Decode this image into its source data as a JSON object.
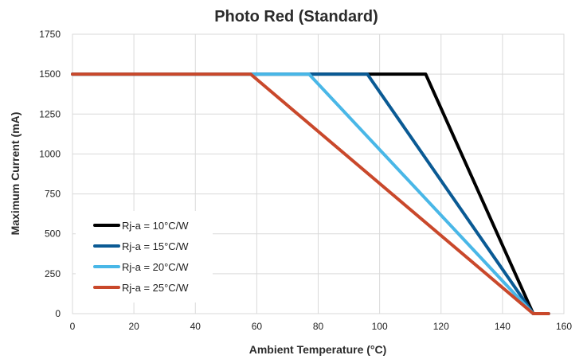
{
  "chart_data": {
    "type": "line",
    "title": "Photo Red (Standard)",
    "xlabel": "Ambient Temperature (°C)",
    "ylabel": "Maximum Current (mA)",
    "xlim": [
      0,
      160
    ],
    "ylim": [
      0,
      1750
    ],
    "xticks": [
      0,
      20,
      40,
      60,
      80,
      100,
      120,
      140,
      160
    ],
    "yticks": [
      0,
      250,
      500,
      750,
      1000,
      1250,
      1500,
      1750
    ],
    "grid": true,
    "legend_position": "bottom-left",
    "series": [
      {
        "name": "Rj-a = 10°C/W",
        "color": "#000000",
        "x": [
          0,
          115,
          150,
          155
        ],
        "y": [
          1500,
          1500,
          0,
          0
        ]
      },
      {
        "name": "Rj-a = 15°C/W",
        "color": "#0a5a94",
        "x": [
          0,
          96,
          150,
          155
        ],
        "y": [
          1500,
          1500,
          0,
          0
        ]
      },
      {
        "name": "Rj-a = 20°C/W",
        "color": "#49b7e7",
        "x": [
          0,
          77,
          150,
          155
        ],
        "y": [
          1500,
          1500,
          0,
          0
        ]
      },
      {
        "name": "Rj-a = 25°C/W",
        "color": "#c9482b",
        "x": [
          0,
          58,
          150,
          155
        ],
        "y": [
          1500,
          1500,
          0,
          0
        ]
      }
    ]
  }
}
